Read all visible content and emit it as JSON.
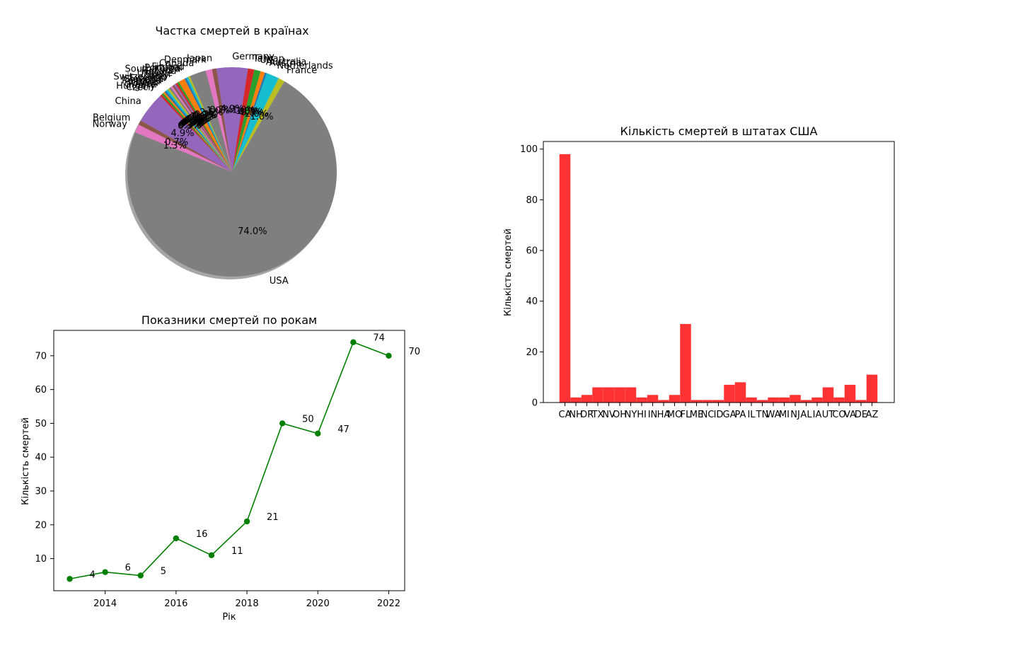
{
  "chart_data": [
    {
      "type": "pie",
      "title": "Частка смертей в країнах",
      "start_angle_deg": 60,
      "shadow": true,
      "slices": [
        {
          "label": "France",
          "pct_label": "1.0%",
          "color": "#bcbd22"
        },
        {
          "label": "Netherlands",
          "pct_label": "2.0%",
          "color": "#17becf"
        },
        {
          "label": "Austria",
          "pct_label": "0.3%",
          "color": "#1f77b4"
        },
        {
          "label": "Australia",
          "pct_label": "0.7%",
          "color": "#ff7f0e"
        },
        {
          "label": "UK",
          "pct_label": "1.0%",
          "color": "#2ca02c"
        },
        {
          "label": "Taiwan",
          "pct_label": "1.0%",
          "color": "#d62728"
        },
        {
          "label": "Germany",
          "pct_label": "4.9%",
          "color": "#9467bd"
        },
        {
          "label": "Japan",
          "pct_label": "0.7%",
          "color": "#8c564b"
        },
        {
          "label": "Denmark",
          "pct_label": "1.0%",
          "color": "#e377c2"
        },
        {
          "label": "Canada",
          "pct_label": "2.6%",
          "color": "#7f7f7f"
        },
        {
          "label": "Finland",
          "pct_label": "0.3%",
          "color": "#bcbd22"
        },
        {
          "label": "Portugal",
          "pct_label": "0.3%",
          "color": "#17becf"
        },
        {
          "label": "South Korea",
          "pct_label": "0.3%",
          "color": "#1f77b4"
        },
        {
          "label": "Holland",
          "pct_label": "1.0%",
          "color": "#ff7f0e"
        },
        {
          "label": "Ukraine",
          "pct_label": "0.3%",
          "color": "#2ca02c"
        },
        {
          "label": "Spain",
          "pct_label": "0.3%",
          "color": "#d62728"
        },
        {
          "label": "Italy",
          "pct_label": "0.3%",
          "color": "#9467bd"
        },
        {
          "label": "Switzerland",
          "pct_label": "0.3%",
          "color": "#8c564b"
        },
        {
          "label": "Sweden",
          "pct_label": "0.3%",
          "color": "#e377c2"
        },
        {
          "label": "Slovenia",
          "pct_label": "0.3%",
          "color": "#7f7f7f"
        },
        {
          "label": "Romania",
          "pct_label": "0.3%",
          "color": "#bcbd22"
        },
        {
          "label": "Israel",
          "pct_label": "0.3%",
          "color": "#17becf"
        },
        {
          "label": "Poland",
          "pct_label": "0.3%",
          "color": "#1f77b4"
        },
        {
          "label": "Greece",
          "pct_label": "0.3%",
          "color": "#ff7f0e"
        },
        {
          "label": "Hungary",
          "pct_label": "0.3%",
          "color": "#2ca02c"
        },
        {
          "label": "Czech",
          "pct_label": "0.3%",
          "color": "#d62728"
        },
        {
          "label": "China",
          "pct_label": "4.9%",
          "color": "#9467bd"
        },
        {
          "label": "Belgium",
          "pct_label": "0.7%",
          "color": "#8c564b"
        },
        {
          "label": "Norway",
          "pct_label": "1.3%",
          "color": "#e377c2"
        },
        {
          "label": "USA",
          "pct_label": "74.0%",
          "color": "#7f7f7f"
        }
      ]
    },
    {
      "type": "bar",
      "title": "Кількість смертей в штатах США",
      "xlabel": "",
      "ylabel": "Кількість смертей",
      "color": "#ff3333",
      "ylim": [
        0,
        103
      ],
      "yticks": [
        0,
        20,
        40,
        60,
        80,
        100
      ],
      "categories": [
        "CA",
        "NH",
        "OR",
        "TX",
        "NV",
        "OH",
        "NY",
        "HI",
        "IN",
        "HA",
        "MO",
        "FL",
        "ME",
        "NC",
        "ID",
        "GA",
        "PA",
        "IL",
        "TN",
        "WA",
        "MI",
        "NJ",
        "AL",
        "IA",
        "UT",
        "CO",
        "VA",
        "DE",
        "AZ"
      ],
      "values": [
        98,
        2,
        3,
        6,
        6,
        6,
        6,
        2,
        3,
        1,
        3,
        31,
        1,
        1,
        1,
        7,
        8,
        2,
        1,
        2,
        2,
        3,
        1,
        2,
        6,
        2,
        7,
        1,
        11
      ]
    },
    {
      "type": "line",
      "title": "Показники смертей по рокам",
      "xlabel": "Рік",
      "ylabel": "Кількість смертей",
      "color": "#008000",
      "marker": "o",
      "x": [
        2013,
        2014,
        2015,
        2016,
        2017,
        2018,
        2019,
        2020,
        2021,
        2022
      ],
      "y": [
        4,
        6,
        5,
        16,
        11,
        21,
        50,
        47,
        74,
        70
      ],
      "xlim": [
        2012.55,
        2022.45
      ],
      "ylim": [
        0.5,
        77.5
      ],
      "xticks": [
        2014,
        2016,
        2018,
        2020,
        2022
      ],
      "yticks": [
        10,
        20,
        30,
        40,
        50,
        60,
        70
      ]
    }
  ]
}
